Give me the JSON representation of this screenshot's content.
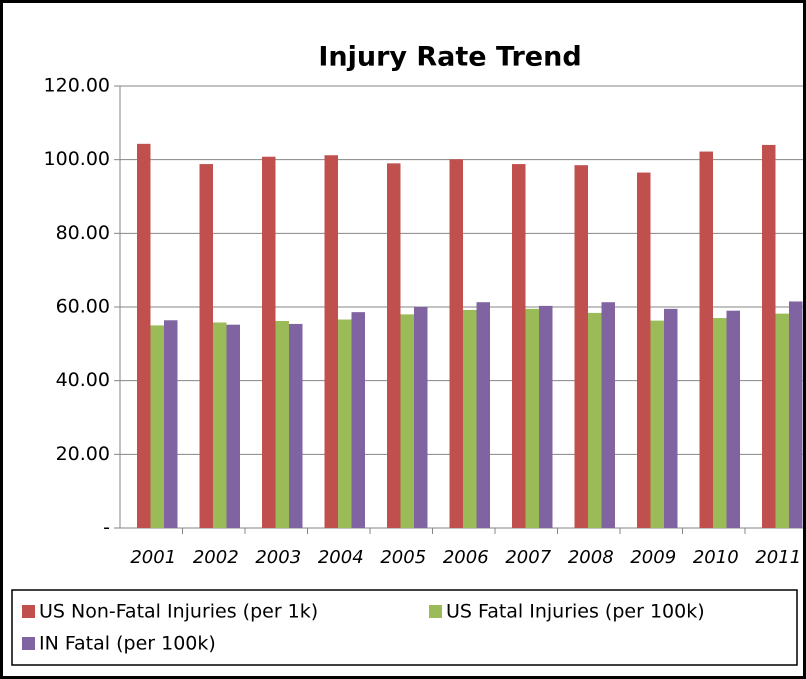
{
  "chart_data": {
    "type": "bar",
    "title": "Injury Rate Trend",
    "categories": [
      "2001",
      "2002",
      "2003",
      "2004",
      "2005",
      "2006",
      "2007",
      "2008",
      "2009",
      "2010",
      "2011"
    ],
    "series": [
      {
        "name": "US Non-Fatal Injuries (per 1k)",
        "color": "#c0504d",
        "values": [
          104.3,
          98.8,
          100.8,
          101.2,
          99.0,
          100.1,
          98.8,
          98.5,
          96.5,
          102.2,
          104.0
        ]
      },
      {
        "name": "US Fatal Injuries (per 100k)",
        "color": "#9bbb59",
        "values": [
          55.0,
          55.8,
          56.2,
          56.6,
          58.0,
          59.2,
          59.5,
          58.4,
          56.3,
          57.0,
          58.2
        ]
      },
      {
        "name": "IN Fatal (per 100k)",
        "color": "#8064a2",
        "values": [
          56.4,
          55.2,
          55.4,
          58.6,
          60.0,
          61.3,
          60.3,
          61.3,
          59.5,
          59.0,
          61.5
        ]
      }
    ],
    "ylim": [
      0,
      120
    ],
    "yticks": [
      {
        "value": 0,
        "label": "-"
      },
      {
        "value": 20,
        "label": "20.00"
      },
      {
        "value": 40,
        "label": "40.00"
      },
      {
        "value": 60,
        "label": "60.00"
      },
      {
        "value": 80,
        "label": "80.00"
      },
      {
        "value": 100,
        "label": "100.00"
      },
      {
        "value": 120,
        "label": "120.00"
      }
    ],
    "grid": true,
    "legend": "bottom"
  }
}
